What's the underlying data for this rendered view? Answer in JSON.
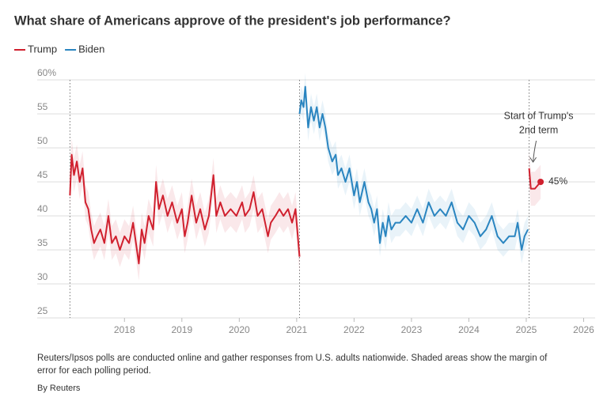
{
  "chart_data": {
    "type": "line",
    "title": "What share of Americans approve of the president's job performance?",
    "legend": "top-left",
    "grid": true,
    "xlim": [
      2016.7,
      2026.2
    ],
    "xticks": [
      2018,
      2019,
      2020,
      2021,
      2022,
      2023,
      2024,
      2025,
      2026
    ],
    "ylim": [
      25,
      60
    ],
    "yticks": [
      25,
      30,
      35,
      40,
      45,
      50,
      55,
      {
        "value": 60,
        "label": "60%"
      }
    ],
    "term_starts": [
      2017.05,
      2021.05,
      2025.05
    ],
    "annotation": [
      "Start of Trump's",
      "2nd term"
    ],
    "series": [
      {
        "name": "Trump",
        "color": "#d0202e",
        "error": 2.5,
        "x": [
          2017.05,
          2017.08,
          2017.12,
          2017.17,
          2017.22,
          2017.27,
          2017.32,
          2017.37,
          2017.42,
          2017.47,
          2017.52,
          2017.58,
          2017.65,
          2017.72,
          2017.78,
          2017.85,
          2017.92,
          2018.0,
          2018.08,
          2018.15,
          2018.2,
          2018.25,
          2018.3,
          2018.35,
          2018.42,
          2018.5,
          2018.55,
          2018.6,
          2018.67,
          2018.75,
          2018.83,
          2018.92,
          2019.0,
          2019.05,
          2019.1,
          2019.17,
          2019.25,
          2019.32,
          2019.4,
          2019.47,
          2019.55,
          2019.6,
          2019.67,
          2019.75,
          2019.85,
          2019.95,
          2020.05,
          2020.1,
          2020.18,
          2020.25,
          2020.32,
          2020.4,
          2020.5,
          2020.55,
          2020.63,
          2020.7,
          2020.77,
          2020.85,
          2020.92,
          2020.98,
          2021.03,
          2021.05,
          2023.0,
          2025.05,
          2025.08,
          2025.15,
          2025.25
        ],
        "values": [
          43,
          49,
          46,
          48,
          45,
          47,
          42,
          41,
          38,
          36,
          37,
          38,
          36,
          40,
          36,
          37,
          35,
          37,
          36,
          39,
          36,
          33,
          38,
          36,
          40,
          38,
          45,
          41,
          43,
          40,
          42,
          39,
          41,
          37,
          39,
          43,
          39,
          41,
          38,
          40,
          46,
          40,
          42,
          40,
          41,
          40,
          42,
          40,
          41,
          43.5,
          40,
          41,
          37,
          39,
          40,
          41,
          40,
          41,
          39,
          41,
          36,
          34,
          null,
          47,
          44,
          44,
          45
        ],
        "value_labels": [
          null,
          null,
          null,
          null,
          null,
          null,
          null,
          null,
          null,
          null,
          null,
          null,
          null,
          null,
          null,
          null,
          null,
          null,
          null,
          null,
          null,
          null,
          null,
          null,
          null,
          null,
          null,
          null,
          null,
          null,
          null,
          null,
          null,
          null,
          null,
          null,
          null,
          null,
          null,
          null,
          null,
          null,
          null,
          null,
          null,
          null,
          null,
          null,
          null,
          null,
          null,
          null,
          null,
          null,
          null,
          null,
          null,
          null,
          null,
          null,
          null,
          null,
          null,
          null,
          null,
          null,
          "45%"
        ]
      },
      {
        "name": "Biden",
        "color": "#2a85c0",
        "error": 2,
        "x": [
          2021.05,
          2021.08,
          2021.12,
          2021.15,
          2021.2,
          2021.25,
          2021.3,
          2021.35,
          2021.4,
          2021.45,
          2021.5,
          2021.55,
          2021.62,
          2021.68,
          2021.72,
          2021.78,
          2021.85,
          2021.92,
          2022.0,
          2022.05,
          2022.1,
          2022.18,
          2022.25,
          2022.3,
          2022.35,
          2022.4,
          2022.45,
          2022.5,
          2022.55,
          2022.6,
          2022.65,
          2022.72,
          2022.8,
          2022.9,
          2023.0,
          2023.1,
          2023.2,
          2023.3,
          2023.4,
          2023.5,
          2023.6,
          2023.7,
          2023.8,
          2023.9,
          2024.0,
          2024.1,
          2024.2,
          2024.3,
          2024.4,
          2024.5,
          2024.6,
          2024.7,
          2024.8,
          2024.85,
          2024.92,
          2024.97,
          2025.03
        ],
        "values": [
          55,
          57,
          56,
          59,
          53,
          56,
          54,
          56,
          53,
          55,
          53,
          50,
          48,
          49,
          46,
          47,
          45,
          47,
          43,
          45,
          42,
          45,
          42,
          41,
          39,
          41,
          36,
          39,
          37,
          40,
          38,
          39,
          39,
          40,
          39,
          41,
          39,
          42,
          40,
          41,
          40,
          42,
          39,
          38,
          40,
          39,
          37,
          38,
          40,
          37,
          36,
          37,
          37,
          39,
          35,
          37,
          38
        ]
      }
    ],
    "note": "Reuters/Ipsos polls are conducted online and gather responses from U.S. adults nationwide. Shaded areas show the margin of",
    "note2": "error for each polling period.",
    "source": "By Reuters"
  }
}
